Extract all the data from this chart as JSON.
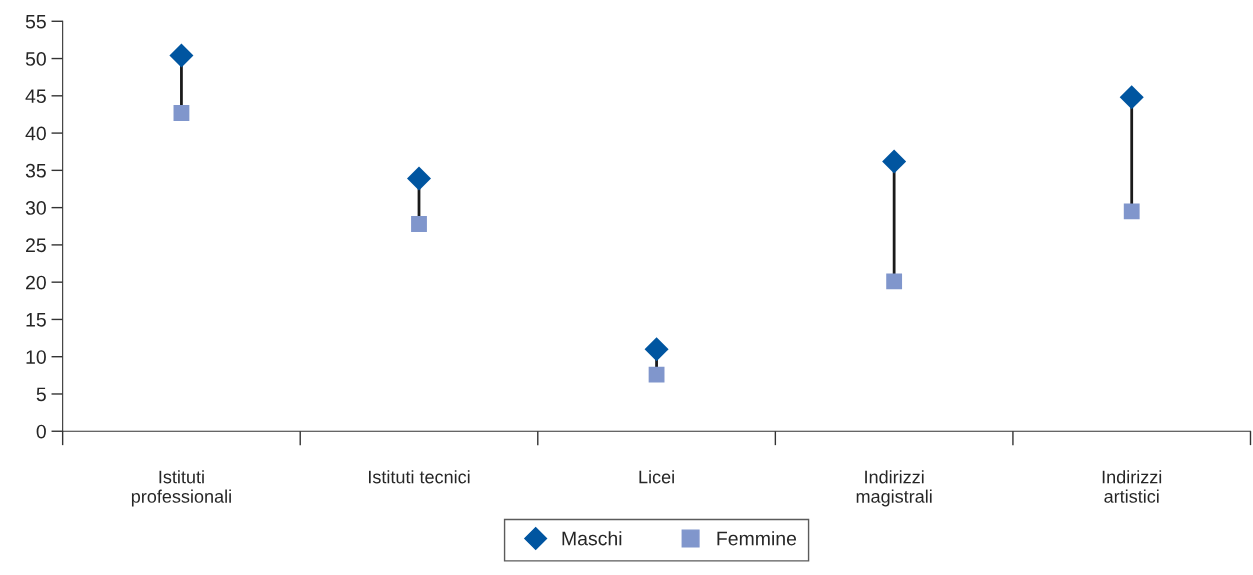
{
  "chart_data": {
    "type": "scatter",
    "categories": [
      "Istituti\nprofessionali",
      "Istituti tecnici",
      "Licei",
      "Indirizzi\nmagistrali",
      "Indirizzi\nartistici"
    ],
    "series": [
      {
        "name": "Maschi",
        "color": "#0055a0",
        "marker": "diamond",
        "values": [
          50.4,
          33.9,
          11.0,
          36.2,
          44.8
        ]
      },
      {
        "name": "Femmine",
        "color": "#8096cc",
        "marker": "square",
        "values": [
          42.7,
          27.8,
          7.6,
          20.1,
          29.5
        ]
      }
    ],
    "ylim": [
      0,
      55
    ],
    "yticks": [
      0,
      5,
      10,
      15,
      20,
      25,
      30,
      35,
      40,
      45,
      50,
      55
    ],
    "grid": false,
    "legend": "bottom"
  }
}
